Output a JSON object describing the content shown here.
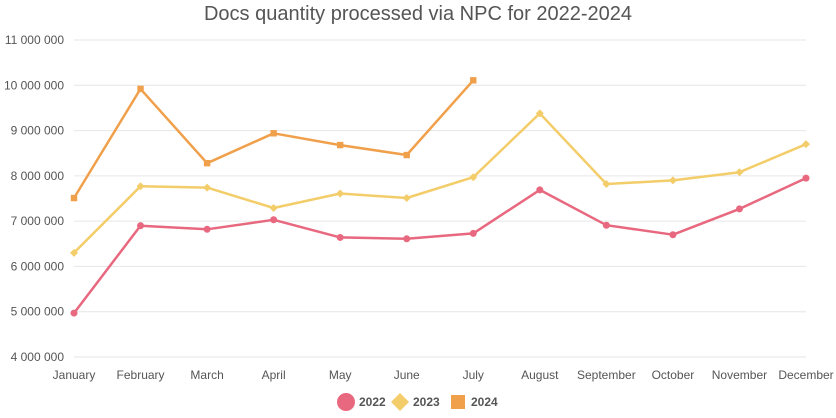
{
  "chart_data": {
    "type": "line",
    "title": "Docs quantity processed via NPC for 2022-2024",
    "xlabel": "",
    "ylabel": "",
    "categories": [
      "January",
      "February",
      "March",
      "April",
      "May",
      "June",
      "July",
      "August",
      "September",
      "October",
      "November",
      "December"
    ],
    "ylim": [
      4000000,
      11000000
    ],
    "y_ticks": [
      4000000,
      5000000,
      6000000,
      7000000,
      8000000,
      9000000,
      10000000,
      11000000
    ],
    "y_tick_labels": [
      "4 000 000",
      "5 000 000",
      "6 000 000",
      "7 000 000",
      "8 000 000",
      "9 000 000",
      "10 000 000",
      "11 000 000"
    ],
    "grid": true,
    "legend_position": "bottom",
    "series": [
      {
        "name": "2022",
        "color": "#e8687f",
        "marker": "circle",
        "values": [
          4970000,
          6900000,
          6820000,
          7030000,
          6640000,
          6610000,
          6730000,
          7690000,
          6910000,
          6700000,
          7270000,
          7950000
        ]
      },
      {
        "name": "2023",
        "color": "#f3cd6a",
        "marker": "diamond",
        "values": [
          6300000,
          7770000,
          7740000,
          7290000,
          7610000,
          7510000,
          7970000,
          9380000,
          7820000,
          7900000,
          8080000,
          8700000
        ]
      },
      {
        "name": "2024",
        "color": "#f0a04b",
        "marker": "square",
        "values": [
          7510000,
          9920000,
          8280000,
          8940000,
          8680000,
          8460000,
          10110000,
          null,
          null,
          null,
          null,
          null
        ]
      }
    ]
  }
}
